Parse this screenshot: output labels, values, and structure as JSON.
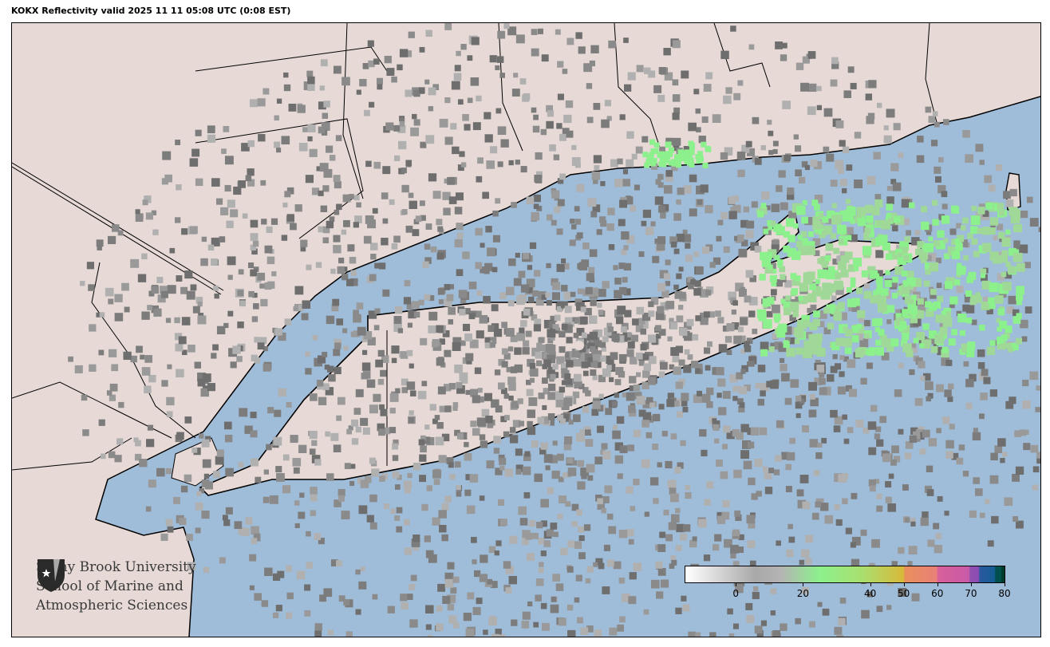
{
  "title": "KOKX Reflectivity valid 2025 11 11 05:08 UTC (0:08 EST)",
  "map": {
    "land_color": "#e6d9d6",
    "water_color": "#9fbcd8",
    "radar_site": "KOKX"
  },
  "logo": {
    "line1": "Stony Brook University",
    "line2": "School of Marine and",
    "line3": "Atmospheric Sciences"
  },
  "colorbar": {
    "range": [
      -15,
      80
    ],
    "ticks": [
      "0",
      "20",
      "40",
      "50",
      "60",
      "70",
      "80"
    ],
    "tick_values": [
      0,
      20,
      40,
      50,
      60,
      70,
      80
    ],
    "colors": [
      "#ffffff",
      "#a8a8a8",
      "#8cf08c",
      "#d8b838",
      "#e88a6a",
      "#d8609a",
      "#9050b0",
      "#1e5c98",
      "#004f50",
      "#003a2c"
    ]
  }
}
